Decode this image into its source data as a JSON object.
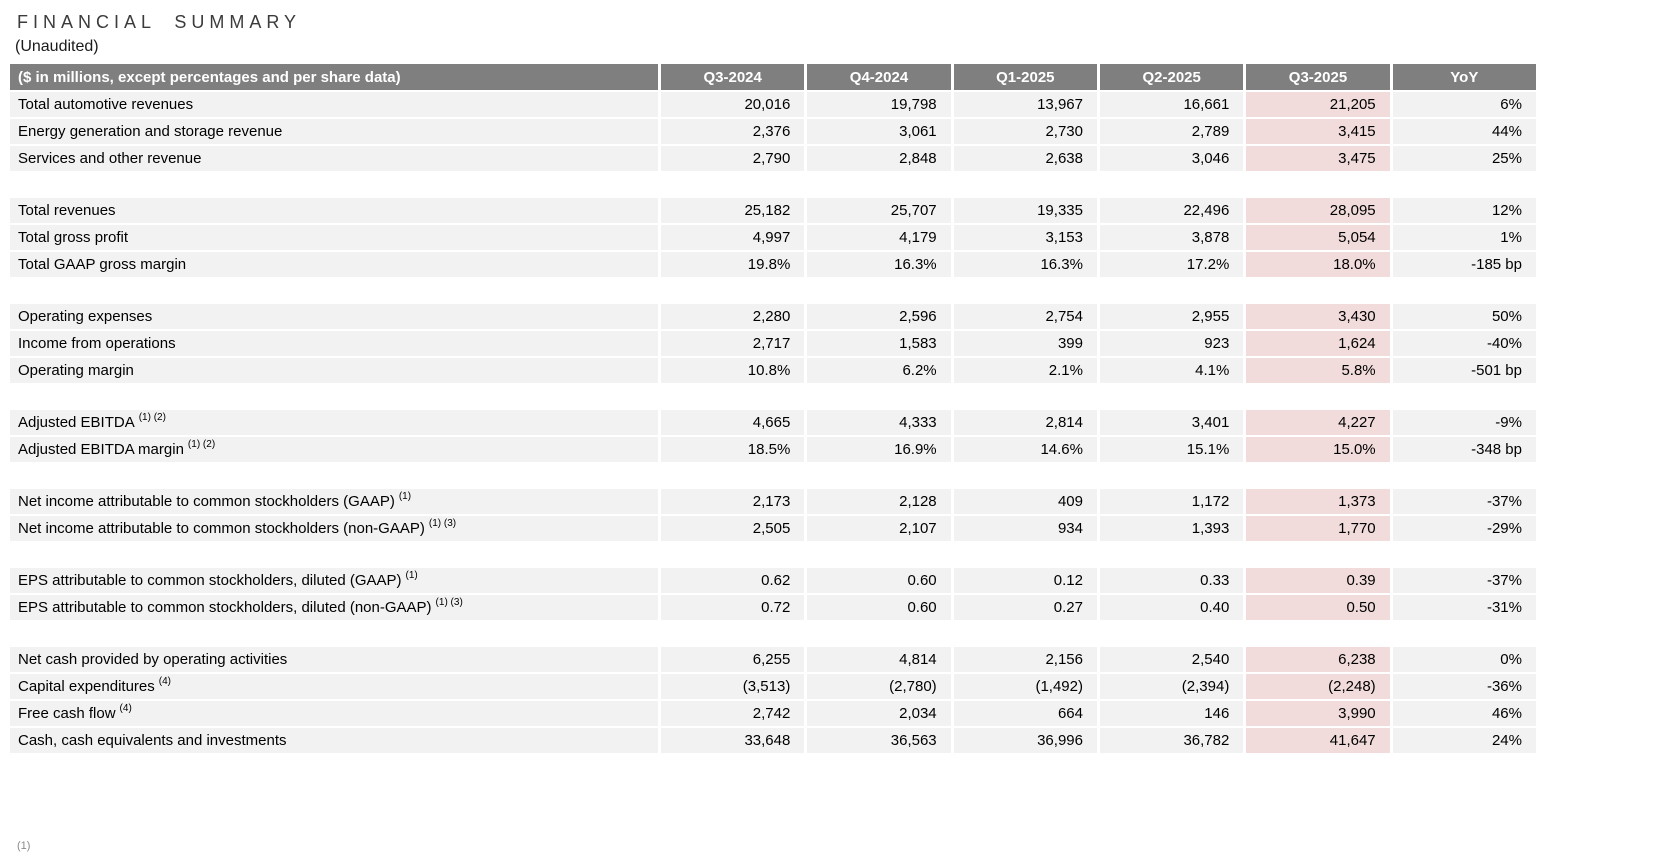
{
  "page": {
    "title": "FINANCIAL SUMMARY",
    "subtitle": "(Unaudited)",
    "footnote_fragment": "(1)"
  },
  "colors": {
    "header_bg": "#7f7f7f",
    "header_text": "#ffffff",
    "row_bg": "#f2f2f2",
    "highlight_bg": "#f1dcdb"
  },
  "table": {
    "header": {
      "label": "($ in millions, except percentages and per share data)",
      "columns": [
        "Q3-2024",
        "Q4-2024",
        "Q1-2025",
        "Q2-2025",
        "Q3-2025",
        "YoY"
      ],
      "highlight_column": "Q3-2025"
    },
    "groups": [
      {
        "rows": [
          {
            "label": "Total automotive revenues",
            "sup": "",
            "values": [
              "20,016",
              "19,798",
              "13,967",
              "16,661",
              "21,205",
              "6%"
            ]
          },
          {
            "label": "Energy generation and storage revenue",
            "sup": "",
            "values": [
              "2,376",
              "3,061",
              "2,730",
              "2,789",
              "3,415",
              "44%"
            ]
          },
          {
            "label": "Services and other revenue",
            "sup": "",
            "values": [
              "2,790",
              "2,848",
              "2,638",
              "3,046",
              "3,475",
              "25%"
            ]
          }
        ]
      },
      {
        "rows": [
          {
            "label": "Total revenues",
            "sup": "",
            "values": [
              "25,182",
              "25,707",
              "19,335",
              "22,496",
              "28,095",
              "12%"
            ]
          },
          {
            "label": "Total gross profit",
            "sup": "",
            "values": [
              "4,997",
              "4,179",
              "3,153",
              "3,878",
              "5,054",
              "1%"
            ]
          },
          {
            "label": "Total GAAP gross margin",
            "sup": "",
            "values": [
              "19.8%",
              "16.3%",
              "16.3%",
              "17.2%",
              "18.0%",
              "-185 bp"
            ]
          }
        ]
      },
      {
        "rows": [
          {
            "label": "Operating expenses",
            "sup": "",
            "values": [
              "2,280",
              "2,596",
              "2,754",
              "2,955",
              "3,430",
              "50%"
            ]
          },
          {
            "label": "Income from operations",
            "sup": "",
            "values": [
              "2,717",
              "1,583",
              "399",
              "923",
              "1,624",
              "-40%"
            ]
          },
          {
            "label": "Operating margin",
            "sup": "",
            "values": [
              "10.8%",
              "6.2%",
              "2.1%",
              "4.1%",
              "5.8%",
              "-501 bp"
            ]
          }
        ]
      },
      {
        "rows": [
          {
            "label": "Adjusted EBITDA",
            "sup": "(1) (2)",
            "values": [
              "4,665",
              "4,333",
              "2,814",
              "3,401",
              "4,227",
              "-9%"
            ]
          },
          {
            "label": "Adjusted EBITDA margin",
            "sup": "(1) (2)",
            "values": [
              "18.5%",
              "16.9%",
              "14.6%",
              "15.1%",
              "15.0%",
              "-348 bp"
            ]
          }
        ]
      },
      {
        "rows": [
          {
            "label": "Net income attributable to common stockholders (GAAP)",
            "sup": "(1)",
            "values": [
              "2,173",
              "2,128",
              "409",
              "1,172",
              "1,373",
              "-37%"
            ]
          },
          {
            "label": "Net income attributable to common stockholders (non-GAAP)",
            "sup": "(1) (3)",
            "values": [
              "2,505",
              "2,107",
              "934",
              "1,393",
              "1,770",
              "-29%"
            ]
          }
        ]
      },
      {
        "rows": [
          {
            "label": "EPS attributable to common stockholders, diluted (GAAP)",
            "sup": "(1)",
            "values": [
              "0.62",
              "0.60",
              "0.12",
              "0.33",
              "0.39",
              "-37%"
            ]
          },
          {
            "label": "EPS attributable to common stockholders, diluted (non-GAAP)",
            "sup": "(1) (3)",
            "values": [
              "0.72",
              "0.60",
              "0.27",
              "0.40",
              "0.50",
              "-31%"
            ]
          }
        ]
      },
      {
        "rows": [
          {
            "label": "Net cash provided by operating activities",
            "sup": "",
            "values": [
              "6,255",
              "4,814",
              "2,156",
              "2,540",
              "6,238",
              "0%"
            ]
          },
          {
            "label": "Capital expenditures",
            "sup": "(4)",
            "values": [
              "(3,513)",
              "(2,780)",
              "(1,492)",
              "(2,394)",
              "(2,248)",
              "-36%"
            ]
          },
          {
            "label": "Free cash flow",
            "sup": "(4)",
            "values": [
              "2,742",
              "2,034",
              "664",
              "146",
              "3,990",
              "46%"
            ]
          },
          {
            "label": "Cash, cash equivalents and investments",
            "sup": "",
            "values": [
              "33,648",
              "36,563",
              "36,996",
              "36,782",
              "41,647",
              "24%"
            ]
          }
        ]
      }
    ]
  }
}
